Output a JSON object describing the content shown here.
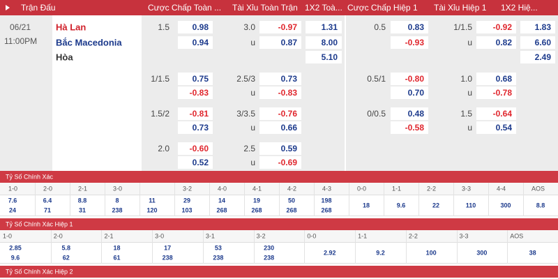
{
  "header": {
    "columns": [
      "Trận Đấu",
      "Cược Chấp Toàn ...",
      "Tài Xỉu Toàn Trận",
      "1X2 Toà...",
      "Cược Chấp Hiệp 1",
      "Tài Xỉu Hiệp 1",
      "1X2 Hiệ..."
    ]
  },
  "match": {
    "date": "06/21",
    "time": "11:00PM",
    "home": "Hà Lan",
    "away": "Bắc Macedonia",
    "draw": "Hòa",
    "groups": [
      {
        "rows": [
          {
            "ft_hcap_line": "1.5",
            "ft_hcap": "0.98",
            "ft_ou_line": "3.0",
            "ft_ou": "-0.97",
            "ft_1x2": "1.31",
            "h1_hcap_line": "0.5",
            "h1_hcap": "0.83",
            "h1_ou_line": "1/1.5",
            "h1_ou": "-0.92",
            "h1_1x2": "1.83"
          },
          {
            "ft_hcap": "0.94",
            "ft_ou_line": "u",
            "ft_ou": "0.87",
            "ft_1x2": "8.00",
            "h1_hcap": "-0.93",
            "h1_ou_line": "u",
            "h1_ou": "0.82",
            "h1_1x2": "6.60"
          },
          {
            "ft_1x2": "5.10",
            "h1_1x2": "2.49"
          }
        ]
      },
      {
        "rows": [
          {
            "ft_hcap_line": "1/1.5",
            "ft_hcap": "0.75",
            "ft_ou_line": "2.5/3",
            "ft_ou": "0.73",
            "h1_hcap_line": "0.5/1",
            "h1_hcap": "-0.80",
            "h1_ou_line": "1.0",
            "h1_ou": "0.68"
          },
          {
            "ft_hcap": "-0.83",
            "ft_ou_line": "u",
            "ft_ou": "-0.83",
            "h1_hcap": "0.70",
            "h1_ou_line": "u",
            "h1_ou": "-0.78"
          }
        ]
      },
      {
        "rows": [
          {
            "ft_hcap_line": "1.5/2",
            "ft_hcap": "-0.81",
            "ft_ou_line": "3/3.5",
            "ft_ou": "-0.76",
            "h1_hcap_line": "0/0.5",
            "h1_hcap": "0.48",
            "h1_ou_line": "1.5",
            "h1_ou": "-0.64"
          },
          {
            "ft_hcap": "0.73",
            "ft_ou_line": "u",
            "ft_ou": "0.66",
            "h1_hcap": "-0.58",
            "h1_ou_line": "u",
            "h1_ou": "0.54"
          }
        ]
      },
      {
        "rows": [
          {
            "ft_hcap_line": "2.0",
            "ft_hcap": "-0.60",
            "ft_ou_line": "2.5",
            "ft_ou": "0.59"
          },
          {
            "ft_hcap": "0.52",
            "ft_ou_line": "u",
            "ft_ou": "-0.69"
          }
        ]
      }
    ]
  },
  "correct_score": {
    "title": "Tỷ Số Chính Xác",
    "columns": [
      {
        "score": "1-0",
        "home": "7.6",
        "away": "24"
      },
      {
        "score": "2-0",
        "home": "6.4",
        "away": "71"
      },
      {
        "score": "2-1",
        "home": "8.8",
        "away": "31"
      },
      {
        "score": "3-0",
        "home": "8",
        "away": "238"
      },
      {
        "score": null,
        "home": "11",
        "away": "120"
      },
      {
        "score": "3-2",
        "home": "29",
        "away": "103"
      },
      {
        "score": "4-0",
        "home": "14",
        "away": "268"
      },
      {
        "score": "4-1",
        "home": "19",
        "away": "268"
      },
      {
        "score": "4-2",
        "home": "50",
        "away": "268"
      },
      {
        "score": "4-3",
        "home": "198",
        "away": "268"
      },
      {
        "score": "0-0",
        "draw": "18"
      },
      {
        "score": "1-1",
        "draw": "9.6"
      },
      {
        "score": "2-2",
        "draw": "22"
      },
      {
        "score": "3-3",
        "draw": "110"
      },
      {
        "score": "4-4",
        "draw": "300"
      },
      {
        "score": "AOS",
        "draw": "8.8"
      }
    ]
  },
  "correct_score_h1": {
    "title": "Tỷ Số Chính Xác Hiệp 1",
    "columns": [
      {
        "score": "1-0",
        "home": "2.85",
        "away": "9.6"
      },
      {
        "score": "2-0",
        "home": "5.8",
        "away": "62"
      },
      {
        "score": "2-1",
        "home": "18",
        "away": "61"
      },
      {
        "score": "3-0",
        "home": "17",
        "away": "238"
      },
      {
        "score": "3-1",
        "home": "53",
        "away": "238"
      },
      {
        "score": "3-2",
        "home": "230",
        "away": "238"
      },
      {
        "score": "0-0",
        "draw": "2.92"
      },
      {
        "score": "1-1",
        "draw": "9.2"
      },
      {
        "score": "2-2",
        "draw": "100"
      },
      {
        "score": "3-3",
        "draw": "300"
      },
      {
        "score": "AOS",
        "draw": "38"
      }
    ]
  },
  "correct_score_h2": {
    "title": "Tỷ Số Chính Xác Hiệp 2"
  }
}
